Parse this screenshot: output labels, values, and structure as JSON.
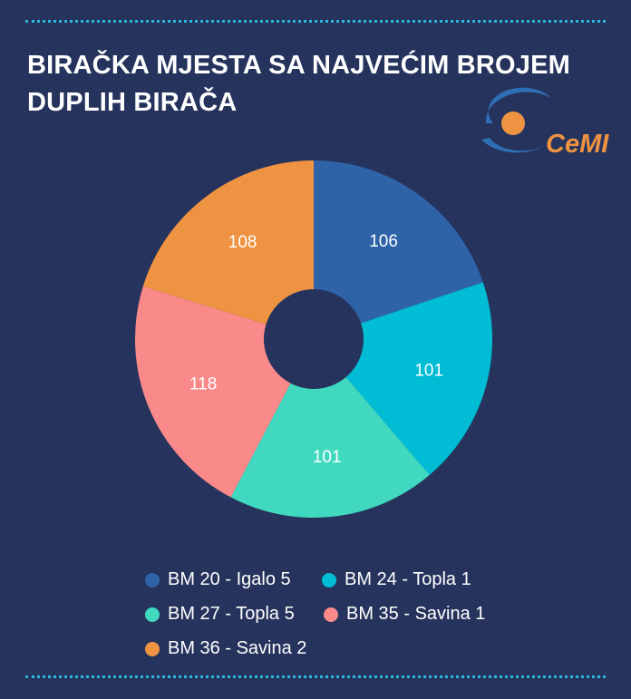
{
  "title_line1": "BIRAČKA MJESTA SA NAJVEĆIM BROJEM",
  "title_line2": "DUPLIH BIRAČA",
  "logo": {
    "text": "CeMI"
  },
  "chart_data": {
    "type": "pie",
    "donut": true,
    "categories": [
      "BM 20 - Igalo 5",
      "BM 24 - Topla 1",
      "BM 27 - Topla 5",
      "BM 35 - Savina 1",
      "BM 36 - Savina 2"
    ],
    "values": [
      106,
      101,
      101,
      118,
      108
    ],
    "colors": [
      "#2e63a8",
      "#00bcd4",
      "#40d9bf",
      "#fa8a8a",
      "#ee9342"
    ],
    "legend_position": "bottom"
  }
}
